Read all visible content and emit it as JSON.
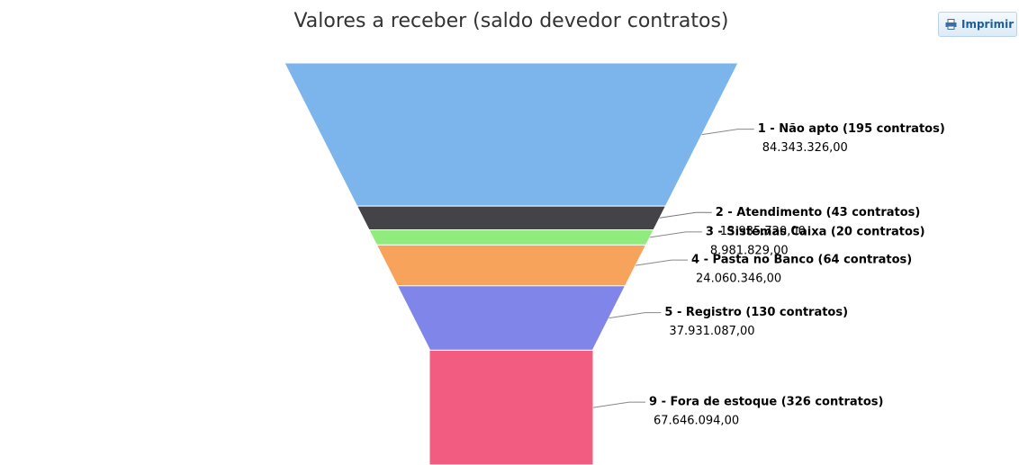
{
  "print_button": "Imprimir",
  "chart_data": {
    "type": "funnel",
    "title": "Valores a receber (saldo devedor contratos)",
    "categories": [
      "1 - Não apto (195 contratos)",
      "2 - Atendimento (43 contratos)",
      "3 - Sistemas Caixa (20 contratos)",
      "4 - Pasta no Banco (64 contratos)",
      "5 - Registro (130 contratos)",
      "9 - Fora de estoque (326 contratos)"
    ],
    "values": [
      84343326,
      13935720,
      8981829,
      24060346,
      37931087,
      67646094
    ],
    "value_labels": [
      "84.343.326,00",
      "13.935.720,00",
      "8.981.829,00",
      "24.060.346,00",
      "37.931.087,00",
      "67.646.094,00"
    ],
    "colors": [
      "#7cb5ec",
      "#434348",
      "#90ed7d",
      "#f7a35c",
      "#8085e9",
      "#f15c80"
    ]
  }
}
